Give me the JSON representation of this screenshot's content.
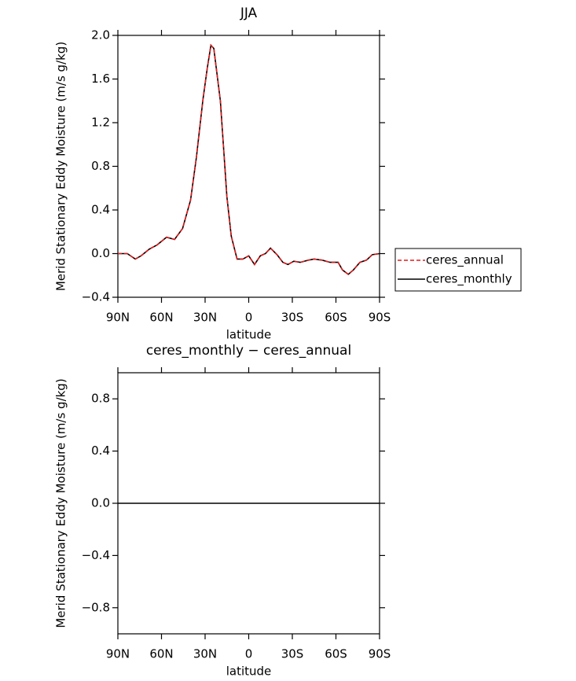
{
  "chart_data": [
    {
      "type": "line",
      "title": "JJA",
      "y_label": "Merid Stationary Eddy Moisture (m/s g/kg)",
      "x_label": "latitude",
      "x": [
        90,
        83.5,
        78,
        74,
        68.5,
        63,
        56.5,
        51,
        45.5,
        40,
        36,
        31.5,
        28.5,
        26,
        24,
        19.5,
        15,
        12,
        8,
        4,
        0,
        -4,
        -8,
        -11.5,
        -15,
        -19.5,
        -23.5,
        -27,
        -31,
        -35.5,
        -41,
        -45,
        -50.5,
        -56,
        -61.5,
        -64.5,
        -68.5,
        -72,
        -76.5,
        -81,
        -85,
        -90
      ],
      "series": [
        {
          "name": "ceres_annual",
          "color": "#e41a1c",
          "line_style": "dashed",
          "values": [
            0.0,
            0.0,
            -0.05,
            -0.02,
            0.04,
            0.08,
            0.15,
            0.13,
            0.23,
            0.49,
            0.88,
            1.41,
            1.7,
            1.91,
            1.88,
            1.4,
            0.52,
            0.16,
            -0.05,
            -0.05,
            -0.02,
            -0.1,
            -0.02,
            0.0,
            0.05,
            -0.01,
            -0.08,
            -0.1,
            -0.07,
            -0.08,
            -0.06,
            -0.05,
            -0.06,
            -0.08,
            -0.08,
            -0.15,
            -0.19,
            -0.15,
            -0.08,
            -0.06,
            -0.01,
            0.0
          ]
        },
        {
          "name": "ceres_monthly",
          "color": "#000000",
          "line_style": "solid",
          "values": [
            0.0,
            0.0,
            -0.05,
            -0.02,
            0.04,
            0.08,
            0.15,
            0.13,
            0.23,
            0.49,
            0.88,
            1.41,
            1.7,
            1.91,
            1.88,
            1.4,
            0.52,
            0.16,
            -0.05,
            -0.05,
            -0.02,
            -0.1,
            -0.02,
            0.0,
            0.05,
            -0.01,
            -0.08,
            -0.1,
            -0.07,
            -0.08,
            -0.06,
            -0.05,
            -0.06,
            -0.08,
            -0.08,
            -0.15,
            -0.19,
            -0.15,
            -0.08,
            -0.06,
            -0.01,
            0.0
          ]
        }
      ],
      "xlim": [
        90,
        -90
      ],
      "xticks": [
        {
          "value": 90,
          "label": "90N"
        },
        {
          "value": 60,
          "label": "60N"
        },
        {
          "value": 30,
          "label": "30N"
        },
        0,
        {
          "value": -30,
          "label": "30S"
        },
        {
          "value": -60,
          "label": "60S"
        },
        {
          "value": -90,
          "label": "90S"
        }
      ],
      "ylim": [
        -0.4,
        2.0
      ],
      "yticks": [
        {
          "value": -0.4,
          "label": "−0.4"
        },
        {
          "value": 0,
          "label": "0.0"
        },
        {
          "value": 0.4,
          "label": "0.4"
        },
        {
          "value": 0.8,
          "label": "0.8"
        },
        {
          "value": 1.2,
          "label": "1.2"
        },
        {
          "value": 1.6,
          "label": "1.6"
        },
        {
          "value": 2.0,
          "label": "2.0"
        }
      ],
      "legend": "right"
    },
    {
      "type": "line",
      "title": "ceres_monthly − ceres_annual",
      "y_label": "Merid Stationary Eddy Moisture (m/s g/kg)",
      "x_label": "latitude",
      "x": [
        90,
        -90
      ],
      "values": [
        0,
        0
      ],
      "color": "#000000",
      "xlim": [
        90,
        -90
      ],
      "xticks": [
        {
          "value": 90,
          "label": "90N"
        },
        {
          "value": 60,
          "label": "60N"
        },
        {
          "value": 30,
          "label": "30N"
        },
        0,
        {
          "value": -30,
          "label": "30S"
        },
        {
          "value": -60,
          "label": "60S"
        },
        {
          "value": -90,
          "label": "90S"
        }
      ],
      "ylim": [
        -1.0,
        1.0
      ],
      "yticks": [
        {
          "value": -0.8,
          "label": "−0.8"
        },
        {
          "value": -0.4,
          "label": "−0.4"
        },
        {
          "value": 0,
          "label": "0.0"
        },
        {
          "value": 0.4,
          "label": "0.4"
        },
        {
          "value": 0.8,
          "label": "0.8"
        }
      ]
    }
  ]
}
